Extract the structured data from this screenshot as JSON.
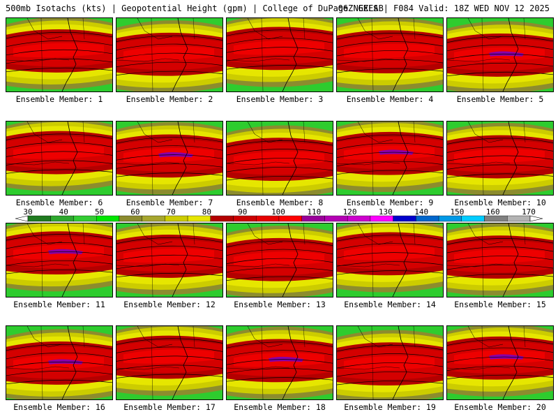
{
  "header": {
    "left": "500mb Isotachs (kts) | Geopotential Height (gpm) | College of DuPage NEXLAB",
    "right": "06Z GEFS | F084 Valid: 18Z WED NOV 12 2025"
  },
  "legend": {
    "ticks": [
      "30",
      "40",
      "50",
      "60",
      "70",
      "80",
      "90",
      "100",
      "110",
      "120",
      "130",
      "140",
      "150",
      "160",
      "170"
    ],
    "colors": [
      "#1f7a1f",
      "#2ea82e",
      "#33cc33",
      "#00e600",
      "#8c8c2e",
      "#a6a62e",
      "#cccc00",
      "#e6e600",
      "#b30000",
      "#cc0000",
      "#e60000",
      "#ff0000",
      "#990099",
      "#b300b3",
      "#cc00cc",
      "#ff00ff",
      "#0000cc",
      "#0066cc",
      "#0099e6",
      "#00ccff",
      "#808080",
      "#b3b3b3"
    ]
  },
  "members": [
    {
      "label": "Ensemble Member: 1"
    },
    {
      "label": "Ensemble Member: 2"
    },
    {
      "label": "Ensemble Member: 3"
    },
    {
      "label": "Ensemble Member: 4"
    },
    {
      "label": "Ensemble Member: 5"
    },
    {
      "label": "Ensemble Member: 6"
    },
    {
      "label": "Ensemble Member: 7"
    },
    {
      "label": "Ensemble Member: 8"
    },
    {
      "label": "Ensemble Member: 9"
    },
    {
      "label": "Ensemble Member: 10"
    },
    {
      "label": "Ensemble Member: 11"
    },
    {
      "label": "Ensemble Member: 12"
    },
    {
      "label": "Ensemble Member: 13"
    },
    {
      "label": "Ensemble Member: 14"
    },
    {
      "label": "Ensemble Member: 15"
    },
    {
      "label": "Ensemble Member: 16"
    },
    {
      "label": "Ensemble Member: 17"
    },
    {
      "label": "Ensemble Member: 18"
    },
    {
      "label": "Ensemble Member: 19"
    },
    {
      "label": "Ensemble Member: 20"
    }
  ]
}
